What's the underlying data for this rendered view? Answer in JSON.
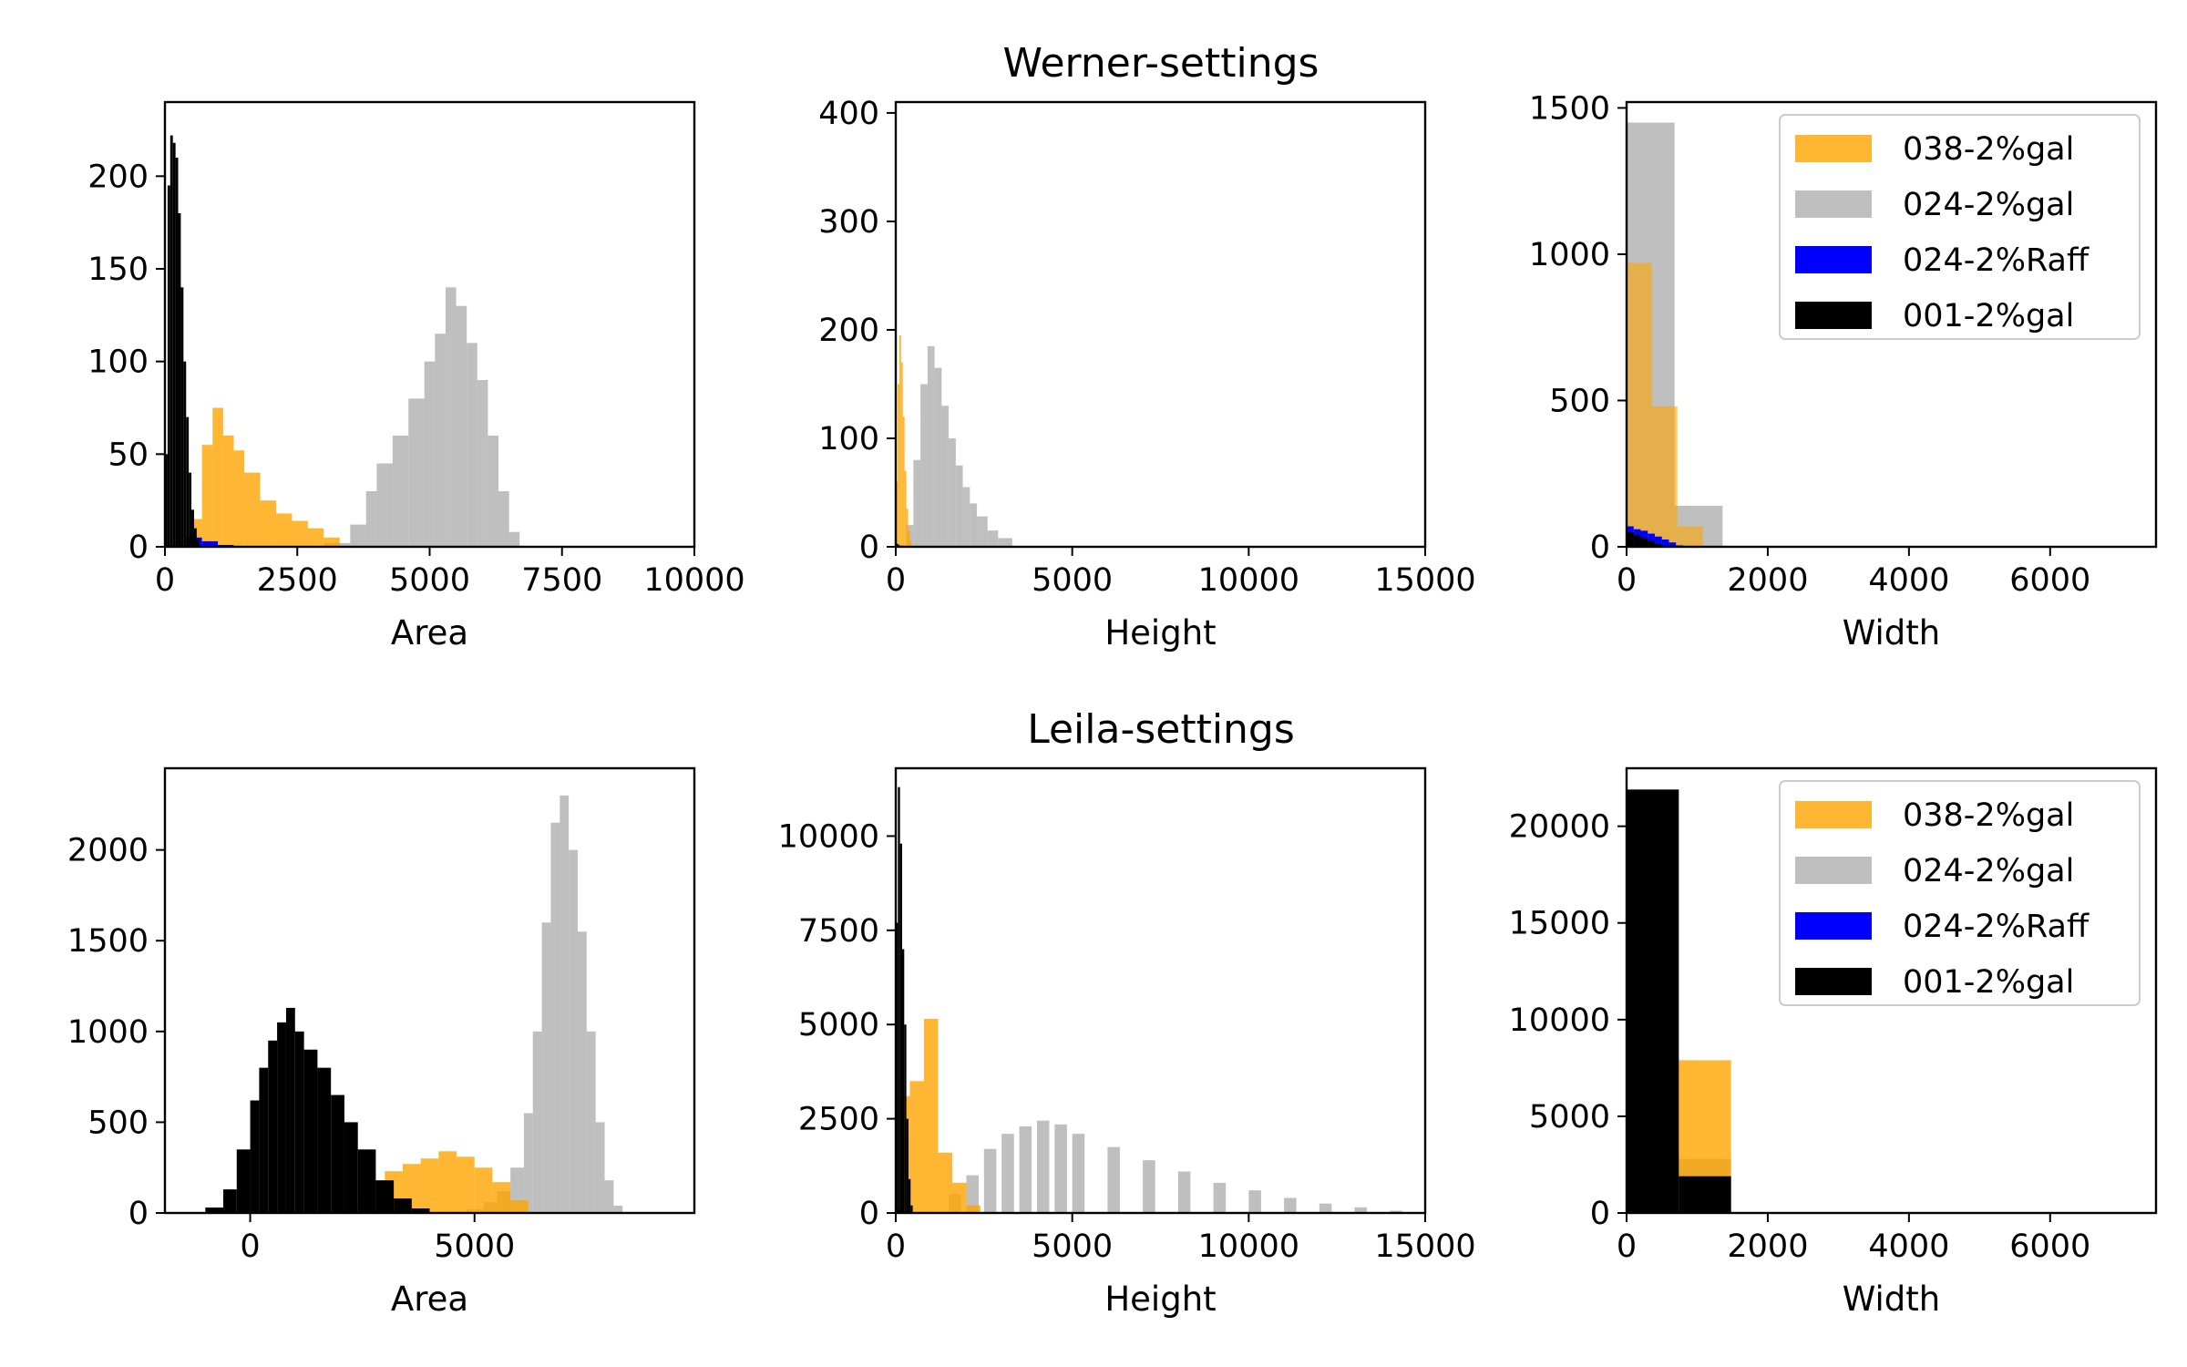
{
  "figure": {
    "row_titles": [
      "Werner-settings",
      "Leila-settings"
    ]
  },
  "colors": {
    "038-2%gal": "#FFA500",
    "024-2%gal": "#A9A9A9",
    "024-2%Raff": "#0000FF",
    "001-2%gal": "#000000"
  },
  "chart_data": [
    {
      "type": "histogram",
      "row": 0,
      "col": 0,
      "title": "",
      "xlabel": "Area",
      "ylabel": "",
      "xlim": [
        0,
        10000
      ],
      "ylim": [
        0,
        240
      ],
      "xticks": [
        "0",
        "2500",
        "5000",
        "7500",
        "10000"
      ],
      "yticks": [
        "0",
        "50",
        "100",
        "150",
        "200"
      ],
      "legend": false,
      "series": [
        {
          "name": "024-2%gal",
          "color": "#A9A9A9",
          "alpha": 0.75,
          "x": [
            3000,
            3500,
            3800,
            4000,
            4300,
            4600,
            4900,
            5100,
            5300,
            5500,
            5700,
            5900,
            6100,
            6300,
            6500,
            6700
          ],
          "y": [
            2,
            12,
            30,
            45,
            60,
            80,
            100,
            115,
            140,
            130,
            110,
            90,
            60,
            30,
            8,
            0
          ]
        },
        {
          "name": "038-2%gal",
          "color": "#FFA500",
          "alpha": 0.8,
          "x": [
            500,
            700,
            900,
            1100,
            1300,
            1500,
            1800,
            2100,
            2400,
            2700,
            3000,
            3300
          ],
          "y": [
            15,
            55,
            75,
            60,
            52,
            40,
            25,
            18,
            14,
            10,
            5,
            0
          ]
        },
        {
          "name": "024-2%Raff",
          "color": "#0000FF",
          "alpha": 1,
          "x": [
            400,
            700,
            1000,
            1300,
            1600
          ],
          "y": [
            5,
            3,
            1,
            0,
            0
          ]
        },
        {
          "name": "001-2%gal",
          "color": "#000000",
          "alpha": 1,
          "x": [
            0,
            50,
            100,
            150,
            200,
            250,
            300,
            350,
            400,
            450,
            500,
            550,
            600,
            650
          ],
          "y": [
            50,
            195,
            222,
            218,
            210,
            180,
            140,
            100,
            70,
            40,
            20,
            10,
            4,
            0
          ]
        }
      ]
    },
    {
      "type": "histogram",
      "row": 0,
      "col": 1,
      "title": "Werner-settings",
      "xlabel": "Height",
      "ylabel": "",
      "xlim": [
        0,
        15000
      ],
      "ylim": [
        0,
        410
      ],
      "xticks": [
        "0",
        "5000",
        "10000",
        "15000"
      ],
      "yticks": [
        "0",
        "100",
        "200",
        "300",
        "400"
      ],
      "legend": false,
      "series": [
        {
          "name": "024-2%gal",
          "color": "#A9A9A9",
          "alpha": 0.75,
          "x": [
            300,
            500,
            700,
            900,
            1100,
            1300,
            1500,
            1700,
            1900,
            2100,
            2300,
            2600,
            2900,
            3300
          ],
          "y": [
            20,
            80,
            150,
            185,
            165,
            130,
            100,
            75,
            55,
            40,
            28,
            15,
            8,
            0
          ]
        },
        {
          "name": "038-2%gal",
          "color": "#FFA500",
          "alpha": 0.8,
          "x": [
            0,
            50,
            100,
            150,
            200,
            250,
            300,
            350,
            400,
            450
          ],
          "y": [
            60,
            150,
            195,
            170,
            120,
            70,
            35,
            15,
            5,
            0
          ]
        },
        {
          "name": "024-2%Raff",
          "color": "#0000FF",
          "alpha": 1,
          "x": [
            0,
            100,
            200
          ],
          "y": [
            2,
            1,
            0
          ]
        },
        {
          "name": "001-2%gal",
          "color": "#000000",
          "alpha": 1,
          "x": [
            0,
            50,
            100
          ],
          "y": [
            3,
            2,
            0
          ]
        }
      ]
    },
    {
      "type": "histogram",
      "row": 0,
      "col": 2,
      "title": "",
      "xlabel": "Width",
      "ylabel": "",
      "xlim": [
        0,
        7500
      ],
      "ylim": [
        0,
        1520
      ],
      "xticks": [
        "0",
        "2000",
        "4000",
        "6000"
      ],
      "yticks": [
        "0",
        "500",
        "1000",
        "1500"
      ],
      "legend": true,
      "legend_position": "upper right",
      "series": [
        {
          "name": "024-2%gal",
          "color": "#A9A9A9",
          "alpha": 0.75,
          "x": [
            0,
            680
          ],
          "y": [
            1450,
            140
          ],
          "width": 680
        },
        {
          "name": "038-2%gal",
          "color": "#FFA500",
          "alpha": 0.6,
          "x": [
            0,
            360,
            720
          ],
          "y": [
            970,
            480,
            70
          ],
          "width": 360
        },
        {
          "name": "024-2%Raff",
          "color": "#0000FF",
          "alpha": 1,
          "x": [
            0,
            100,
            200,
            300,
            400,
            500,
            600,
            700
          ],
          "y": [
            70,
            60,
            55,
            45,
            35,
            25,
            15,
            5
          ],
          "width": 100
        },
        {
          "name": "001-2%gal",
          "color": "#000000",
          "alpha": 1,
          "x": [
            0,
            100,
            200,
            300,
            400
          ],
          "y": [
            50,
            40,
            30,
            20,
            10
          ],
          "width": 100
        }
      ]
    },
    {
      "type": "histogram",
      "row": 1,
      "col": 0,
      "title": "",
      "xlabel": "Area",
      "ylabel": "",
      "xlim": [
        -1900,
        9900
      ],
      "ylim": [
        0,
        2450
      ],
      "xticks": [
        "0",
        "5000"
      ],
      "xtick_values": [
        0,
        5000
      ],
      "yticks": [
        "0",
        "500",
        "1000",
        "1500",
        "2000"
      ],
      "legend": false,
      "series": [
        {
          "name": "024-2%gal",
          "color": "#A9A9A9",
          "alpha": 0.75,
          "x": [
            4800,
            5200,
            5500,
            5800,
            6100,
            6300,
            6500,
            6700,
            6900,
            7100,
            7300,
            7500,
            7700,
            7900,
            8100,
            8300
          ],
          "y": [
            20,
            60,
            120,
            250,
            550,
            1000,
            1600,
            2150,
            2300,
            2000,
            1550,
            1000,
            500,
            180,
            40,
            0
          ]
        },
        {
          "name": "038-2%gal",
          "color": "#FFA500",
          "alpha": 0.8,
          "x": [
            2200,
            2600,
            3000,
            3400,
            3800,
            4200,
            4600,
            5000,
            5400,
            5800,
            6200
          ],
          "y": [
            40,
            150,
            230,
            270,
            300,
            340,
            310,
            250,
            170,
            70,
            0
          ]
        },
        {
          "name": "024-2%Raff",
          "color": "#0000FF",
          "alpha": 1,
          "x": [
            0,
            2000
          ],
          "y": [
            0,
            0
          ]
        },
        {
          "name": "001-2%gal",
          "color": "#000000",
          "alpha": 1,
          "x": [
            -1500,
            -1000,
            -600,
            -300,
            0,
            200,
            400,
            600,
            800,
            1000,
            1200,
            1500,
            1800,
            2100,
            2400,
            2800,
            3200,
            3600,
            4000
          ],
          "y": [
            5,
            30,
            130,
            350,
            620,
            800,
            950,
            1050,
            1130,
            1000,
            900,
            800,
            650,
            500,
            350,
            180,
            80,
            25,
            0
          ]
        }
      ]
    },
    {
      "type": "histogram",
      "row": 1,
      "col": 1,
      "title": "Leila-settings",
      "xlabel": "Height",
      "ylabel": "",
      "xlim": [
        0,
        15000
      ],
      "ylim": [
        0,
        11800
      ],
      "xticks": [
        "0",
        "5000",
        "10000",
        "15000"
      ],
      "yticks": [
        "0",
        "2500",
        "5000",
        "7500",
        "10000"
      ],
      "legend": false,
      "series": [
        {
          "name": "024-2%gal",
          "color": "#A9A9A9",
          "alpha": 0.75,
          "x": [
            0,
            1500,
            2000,
            2500,
            3000,
            3500,
            4000,
            4500,
            5000,
            6000,
            7000,
            8000,
            9000,
            10000,
            11000,
            12000,
            13000,
            14000
          ],
          "y": [
            60,
            500,
            1000,
            1700,
            2100,
            2300,
            2450,
            2350,
            2100,
            1750,
            1400,
            1100,
            800,
            600,
            400,
            250,
            150,
            60
          ],
          "width": 350
        },
        {
          "name": "038-2%gal",
          "color": "#FFA500",
          "alpha": 0.8,
          "x": [
            0,
            400,
            800,
            1200,
            1600,
            2000,
            2400
          ],
          "y": [
            3100,
            3500,
            5150,
            1600,
            800,
            200,
            0
          ],
          "width": 400
        },
        {
          "name": "024-2%Raff",
          "color": "#0000FF",
          "alpha": 1,
          "x": [
            0,
            200
          ],
          "y": [
            100,
            0
          ],
          "width": 200
        },
        {
          "name": "001-2%gal",
          "color": "#000000",
          "alpha": 1,
          "x": [
            0,
            60,
            120,
            180,
            240,
            300,
            360,
            420
          ],
          "y": [
            7700,
            11300,
            9800,
            7000,
            5000,
            2500,
            900,
            200
          ],
          "width": 60
        }
      ]
    },
    {
      "type": "histogram",
      "row": 1,
      "col": 2,
      "title": "",
      "xlabel": "Width",
      "ylabel": "",
      "xlim": [
        0,
        7500
      ],
      "ylim": [
        0,
        23000
      ],
      "xticks": [
        "0",
        "2000",
        "4000",
        "6000"
      ],
      "yticks": [
        "0",
        "5000",
        "10000",
        "15000",
        "20000"
      ],
      "legend": true,
      "legend_position": "upper right",
      "series": [
        {
          "name": "024-2%gal",
          "color": "#A9A9A9",
          "alpha": 0.75,
          "x": [
            0,
            740
          ],
          "y": [
            3000,
            2800
          ],
          "width": 740
        },
        {
          "name": "038-2%gal",
          "color": "#FFA500",
          "alpha": 0.8,
          "x": [
            740
          ],
          "y": [
            7900
          ],
          "width": 740
        },
        {
          "name": "024-2%Raff",
          "color": "#0000FF",
          "alpha": 1,
          "x": [
            0
          ],
          "y": [
            0
          ],
          "width": 740
        },
        {
          "name": "001-2%gal",
          "color": "#000000",
          "alpha": 1,
          "x": [
            0,
            740
          ],
          "y": [
            21900,
            1900
          ],
          "width": 740
        }
      ]
    }
  ],
  "legend_order": [
    "038-2%gal",
    "024-2%gal",
    "024-2%Raff",
    "001-2%gal"
  ]
}
